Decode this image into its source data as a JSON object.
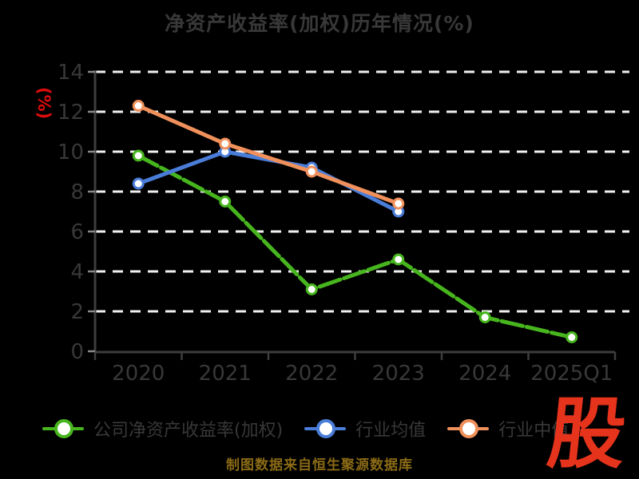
{
  "title": "净资产收益率(加权)历年情况(%)",
  "y_axis_unit": "(%)",
  "caption": "制图数据来自恒生聚源数据库",
  "logo_text": "股",
  "colors": {
    "background": "#000000",
    "text_muted": "#383838",
    "grid_white": "#f0f0f0",
    "axis_gray": "#3d3d3d",
    "unit_red": "#dd0c0c",
    "caption_gold": "#8a6a15",
    "logo_red": "#e5331c",
    "company_green": "#47b51e",
    "industry_blue": "#4a7dd8",
    "median_orange": "#f0915c",
    "marker_fill": "#ffffff"
  },
  "chart_data": {
    "type": "line",
    "title": "净资产收益率(加权)历年情况(%)",
    "ylabel": "(%)",
    "categories": [
      "2020",
      "2021",
      "2022",
      "2023",
      "2024",
      "2025Q1"
    ],
    "series": [
      {
        "name": "公司净资产收益率(加权)",
        "color_key": "company_green",
        "dashed": true,
        "values": [
          9.8,
          7.5,
          3.1,
          4.6,
          1.7,
          0.7
        ]
      },
      {
        "name": "行业均值",
        "color_key": "industry_blue",
        "dashed": false,
        "values": [
          8.4,
          10.0,
          9.2,
          7.0,
          null,
          null
        ]
      },
      {
        "name": "行业中值",
        "color_key": "median_orange",
        "dashed": false,
        "values": [
          12.3,
          10.4,
          9.0,
          7.4,
          null,
          null
        ]
      }
    ],
    "ylim": [
      0,
      14
    ],
    "ytick_step": 2,
    "grid": "horizontal-white-dashed",
    "legend_position": "bottom"
  }
}
